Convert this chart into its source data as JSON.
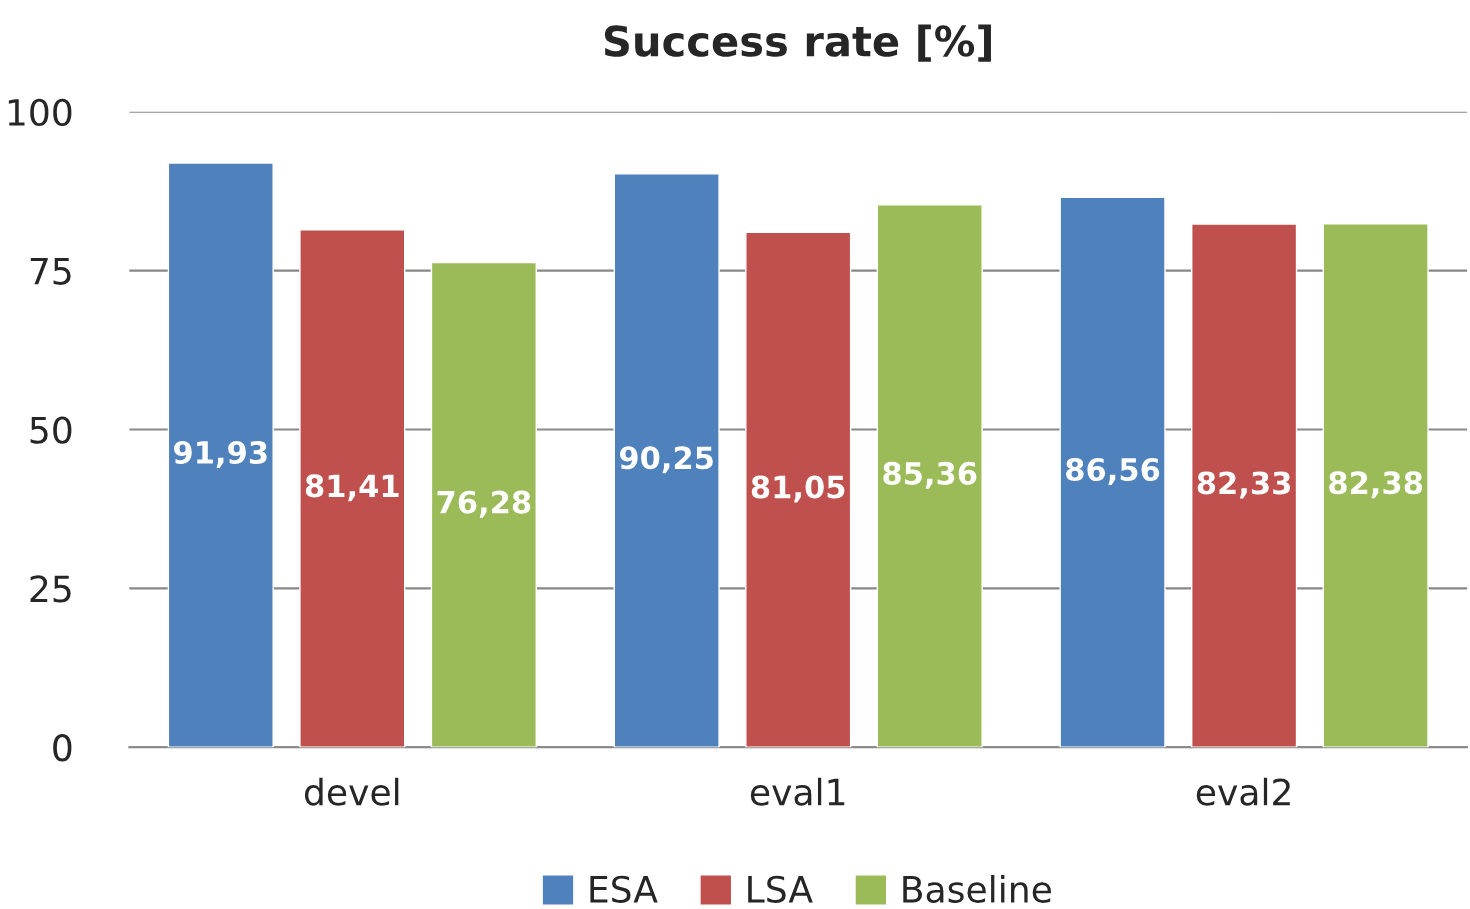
{
  "chart_data": {
    "type": "bar",
    "title": "Success rate [%]",
    "categories": [
      "devel",
      "eval1",
      "eval2"
    ],
    "series": [
      {
        "name": "ESA",
        "color": "#4f81bd",
        "values": [
          91.93,
          90.25,
          86.56
        ],
        "value_labels": [
          "91,93",
          "90,25",
          "86,56"
        ]
      },
      {
        "name": "LSA",
        "color": "#c0504d",
        "values": [
          81.41,
          81.05,
          82.33
        ],
        "value_labels": [
          "81,41",
          "81,05",
          "82,33"
        ]
      },
      {
        "name": "Baseline",
        "color": "#9bbb59",
        "values": [
          76.28,
          85.36,
          82.38
        ],
        "value_labels": [
          "76,28",
          "85,36",
          "82,38"
        ]
      }
    ],
    "ylim": [
      0,
      100
    ],
    "yticks": [
      0,
      25,
      50,
      75,
      100
    ],
    "grid": "y",
    "legend": "bottom"
  }
}
